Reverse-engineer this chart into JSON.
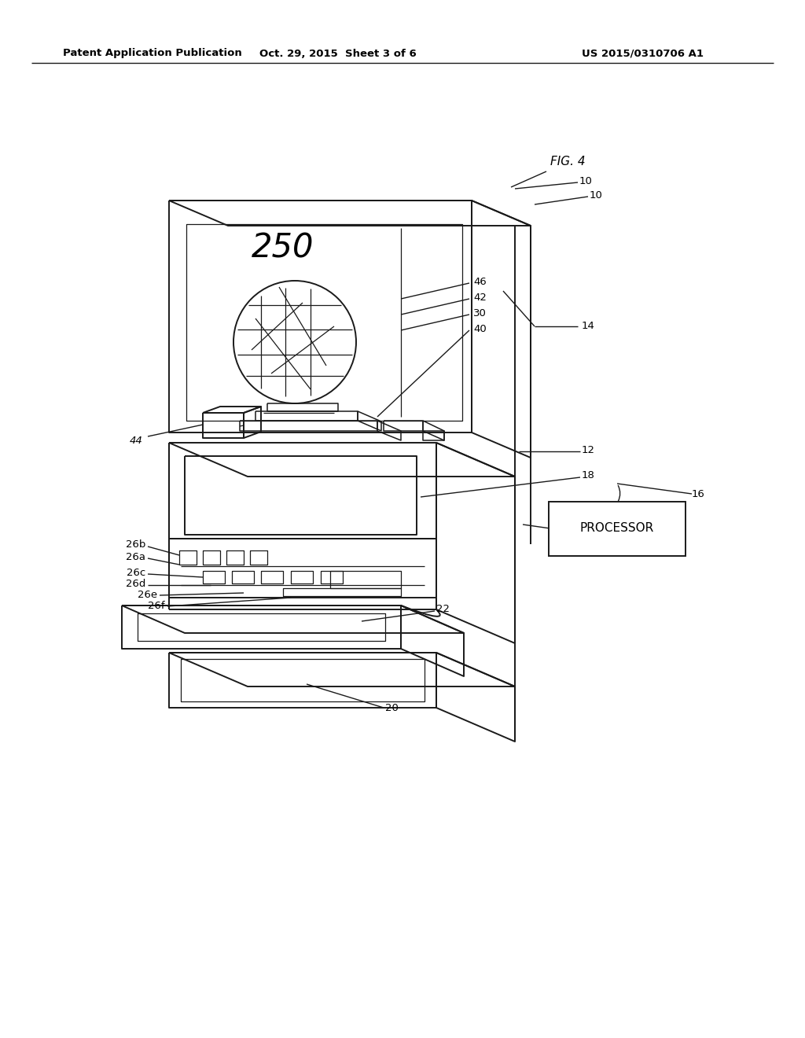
{
  "bg_color": "#ffffff",
  "line_color": "#1a1a1a",
  "header_left": "Patent Application Publication",
  "header_center": "Oct. 29, 2015  Sheet 3 of 6",
  "header_right": "US 2015/0310706 A1",
  "fig_label": "FIG. 4",
  "lw_main": 1.4,
  "lw_thin": 0.9,
  "lw_med": 1.1,
  "note_font": 10,
  "label_font": 9.5
}
